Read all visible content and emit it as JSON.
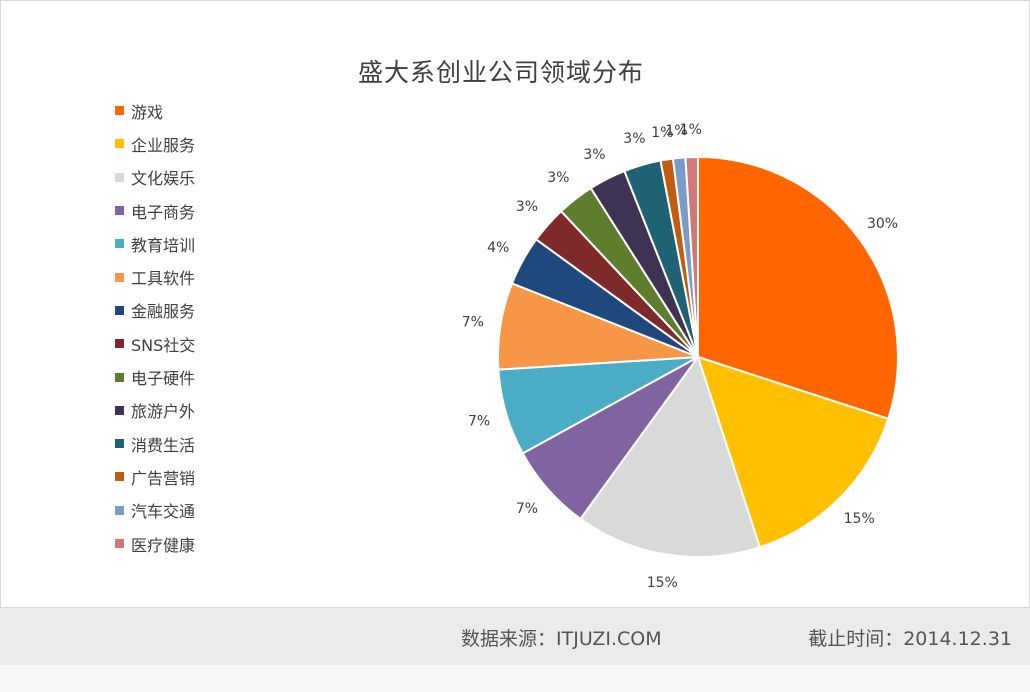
{
  "chart_data": {
    "type": "pie",
    "title": "盛大系创业公司领域分布",
    "slices": [
      {
        "label": "游戏",
        "value": 30,
        "value_label": "30%",
        "color": "#ff6600"
      },
      {
        "label": "企业服务",
        "value": 15,
        "value_label": "15%",
        "color": "#ffc000"
      },
      {
        "label": "文化娱乐",
        "value": 15,
        "value_label": "15%",
        "color": "#d9d9d9"
      },
      {
        "label": "电子商务",
        "value": 7,
        "value_label": "7%",
        "color": "#8064a2"
      },
      {
        "label": "教育培训",
        "value": 7,
        "value_label": "7%",
        "color": "#4bacc6"
      },
      {
        "label": "工具软件",
        "value": 7,
        "value_label": "7%",
        "color": "#f79646"
      },
      {
        "label": "金融服务",
        "value": 4,
        "value_label": "4%",
        "color": "#1f497d"
      },
      {
        "label": "SNS社交",
        "value": 3,
        "value_label": "3%",
        "color": "#7f2a2a"
      },
      {
        "label": "电子硬件",
        "value": 3,
        "value_label": "3%",
        "color": "#5e7e2e"
      },
      {
        "label": "旅游户外",
        "value": 3,
        "value_label": "3%",
        "color": "#3f3353"
      },
      {
        "label": "消费生活",
        "value": 3,
        "value_label": "3%",
        "color": "#1f6273"
      },
      {
        "label": "广告营销",
        "value": 1,
        "value_label": "1%",
        "color": "#c05d0f"
      },
      {
        "label": "汽车交通",
        "value": 1,
        "value_label": "1%",
        "color": "#7b9bc8"
      },
      {
        "label": "医疗健康",
        "value": 1,
        "value_label": "1%",
        "color": "#d27878"
      }
    ],
    "legend_position": "left"
  },
  "footer": {
    "source": "数据来源：ITJUZI.COM",
    "cutoff": "截止时间：2014.12.31"
  }
}
